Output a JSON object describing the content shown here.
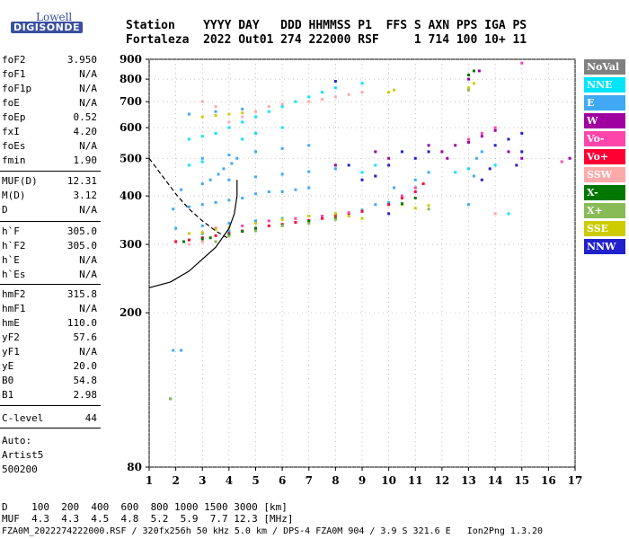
{
  "logo": {
    "lowell": "Lowell",
    "digisonde": "DIGISONDE"
  },
  "header": {
    "row1": "Station    YYYY DAY   DDD HHMMSS P1  FFS S AXN PPS IGA PS",
    "row2": "Fortaleza  2022 Out01 274 222000 RSF     1 714 100 10+ 11"
  },
  "params_block1": [
    {
      "label": "foF2",
      "value": "3.950"
    },
    {
      "label": "foF1",
      "value": "N/A"
    },
    {
      "label": "foF1p",
      "value": "N/A"
    },
    {
      "label": "foE",
      "value": "N/A"
    },
    {
      "label": "foEp",
      "value": "0.52"
    },
    {
      "label": "fxI",
      "value": "4.20"
    },
    {
      "label": "foEs",
      "value": "N/A"
    },
    {
      "label": "fmin",
      "value": "1.90"
    }
  ],
  "params_block2": [
    {
      "label": "MUF(D)",
      "value": "12.31"
    },
    {
      "label": "M(D)",
      "value": "3.12"
    },
    {
      "label": "D",
      "value": "N/A"
    }
  ],
  "params_block3": [
    {
      "label": "h`F",
      "value": "305.0"
    },
    {
      "label": "h`F2",
      "value": "305.0"
    },
    {
      "label": "h`E",
      "value": "N/A"
    },
    {
      "label": "h`Es",
      "value": "N/A"
    }
  ],
  "params_block4": [
    {
      "label": "hmF2",
      "value": "315.8"
    },
    {
      "label": "hmF1",
      "value": "N/A"
    },
    {
      "label": "hmE",
      "value": "110.0"
    },
    {
      "label": "yF2",
      "value": "57.6"
    },
    {
      "label": "yF1",
      "value": "N/A"
    },
    {
      "label": "yE",
      "value": "20.0"
    },
    {
      "label": "B0",
      "value": "54.8"
    },
    {
      "label": "B1",
      "value": "2.98"
    }
  ],
  "params_block5": [
    {
      "label": "C-level",
      "value": "44"
    }
  ],
  "auto": {
    "line1": "Auto:",
    "line2": "Artist5",
    "line3": "500200"
  },
  "muf_table": {
    "row1": "D    100  200  400  600  800 1000 1500 3000 [km]",
    "row2": "MUF  4.3  4.3  4.5  4.8  5.2  5.9  7.7 12.3 [MHz]"
  },
  "footer": "FZA0M_2022274222000.RSF / 320fx256h 50 kHz 5.0 km / DPS-4 FZA0M 904 / 3.9 S 321.6 E   Ion2Png 1.3.20",
  "legend": [
    {
      "label": "NoVal",
      "color": "#808080"
    },
    {
      "label": "NNE",
      "color": "#00e5ff"
    },
    {
      "label": "E",
      "color": "#3fa9f5"
    },
    {
      "label": "W",
      "color": "#a000a0"
    },
    {
      "label": "Vo-",
      "color": "#ff44aa"
    },
    {
      "label": "Vo+",
      "color": "#ff0033"
    },
    {
      "label": "SSW",
      "color": "#ffaaaa"
    },
    {
      "label": "X-",
      "color": "#007700"
    },
    {
      "label": "X+",
      "color": "#88bb55"
    },
    {
      "label": "SSE",
      "color": "#cccc00"
    },
    {
      "label": "NNW",
      "color": "#2020cc"
    }
  ],
  "chart_data": {
    "type": "scatter",
    "x_ticks": [
      1,
      2,
      3,
      4,
      5,
      6,
      7,
      8,
      9,
      10,
      11,
      12,
      13,
      14,
      15,
      16,
      17
    ],
    "y_ticks": [
      80,
      200,
      300,
      400,
      500,
      600,
      700,
      800,
      900
    ],
    "xlim": [
      1,
      17
    ],
    "ylim_log": [
      80,
      900
    ],
    "grid": true,
    "legend_placement": "right",
    "series": [
      {
        "name": "E",
        "color": "#3fa9f5",
        "points": [
          [
            1.9,
            370
          ],
          [
            2.5,
            375
          ],
          [
            3,
            380
          ],
          [
            3.5,
            385
          ],
          [
            4,
            390
          ],
          [
            4.5,
            395
          ],
          [
            5,
            405
          ],
          [
            5.5,
            410
          ],
          [
            6,
            410
          ],
          [
            6.5,
            415
          ],
          [
            7,
            420
          ],
          [
            2,
            330
          ],
          [
            3,
            335
          ],
          [
            4,
            340
          ],
          [
            5,
            345
          ],
          [
            6,
            350
          ],
          [
            7,
            355
          ],
          [
            8,
            360
          ],
          [
            9,
            368
          ],
          [
            10,
            385
          ],
          [
            10.5,
            395
          ],
          [
            2.2,
            415
          ],
          [
            3,
            430
          ],
          [
            4,
            440
          ],
          [
            5,
            448
          ],
          [
            6,
            455
          ],
          [
            7,
            462
          ],
          [
            8,
            470
          ],
          [
            3,
            500
          ],
          [
            4,
            510
          ],
          [
            5,
            520
          ],
          [
            6,
            530
          ],
          [
            7,
            540
          ],
          [
            2.5,
            650
          ],
          [
            3.5,
            660
          ],
          [
            4.5,
            670
          ],
          [
            3,
            320
          ],
          [
            4,
            325
          ],
          [
            1.9,
            160
          ],
          [
            2.2,
            160
          ],
          [
            13,
            380
          ],
          [
            13.2,
            450
          ],
          [
            13.3,
            500
          ],
          [
            13.5,
            520
          ],
          [
            10.2,
            420
          ],
          [
            11,
            440
          ],
          [
            11.5,
            460
          ],
          [
            9.5,
            380
          ],
          [
            3.3,
            440
          ],
          [
            3.6,
            455
          ],
          [
            3.8,
            470
          ],
          [
            4.1,
            485
          ],
          [
            4.3,
            500
          ]
        ]
      },
      {
        "name": "NNE",
        "color": "#00e5ff",
        "points": [
          [
            2.5,
            560
          ],
          [
            3,
            570
          ],
          [
            3.5,
            580
          ],
          [
            4,
            600
          ],
          [
            4.5,
            620
          ],
          [
            5,
            640
          ],
          [
            5.5,
            660
          ],
          [
            6,
            680
          ],
          [
            6.5,
            700
          ],
          [
            7,
            720
          ],
          [
            7.5,
            740
          ],
          [
            8,
            760
          ],
          [
            9,
            780
          ],
          [
            2.5,
            480
          ],
          [
            3,
            490
          ],
          [
            4.5,
            560
          ],
          [
            5,
            580
          ],
          [
            6,
            600
          ],
          [
            13,
            470
          ],
          [
            14,
            480
          ],
          [
            14.5,
            360
          ],
          [
            12.5,
            460
          ],
          [
            10.5,
            400
          ],
          [
            11,
            420
          ],
          [
            9,
            460
          ],
          [
            9.5,
            480
          ]
        ]
      },
      {
        "name": "Vo+",
        "color": "#ff0033",
        "points": [
          [
            2,
            305
          ],
          [
            2.5,
            308
          ],
          [
            3,
            312
          ],
          [
            3.5,
            316
          ],
          [
            4,
            320
          ],
          [
            4.5,
            325
          ],
          [
            5,
            330
          ],
          [
            5.5,
            335
          ],
          [
            6,
            338
          ],
          [
            6.5,
            342
          ],
          [
            7,
            346
          ],
          [
            7.5,
            350
          ],
          [
            8,
            356
          ],
          [
            8.5,
            360
          ],
          [
            9,
            365
          ],
          [
            10,
            380
          ],
          [
            10.5,
            395
          ],
          [
            11,
            410
          ],
          [
            11.3,
            430
          ]
        ]
      },
      {
        "name": "Vo-",
        "color": "#ff44aa",
        "points": [
          [
            2.5,
            320
          ],
          [
            3.5,
            330
          ],
          [
            4.5,
            335
          ],
          [
            5.5,
            345
          ],
          [
            6.5,
            350
          ],
          [
            7.5,
            355
          ],
          [
            8.5,
            362
          ],
          [
            10.5,
            400
          ],
          [
            11,
            420
          ],
          [
            13,
            560
          ],
          [
            13.5,
            580
          ],
          [
            14,
            600
          ],
          [
            15,
            880
          ],
          [
            16.5,
            490
          ]
        ]
      },
      {
        "name": "W",
        "color": "#a000a0",
        "points": [
          [
            12,
            520
          ],
          [
            12.5,
            540
          ],
          [
            13,
            550
          ],
          [
            13.5,
            570
          ],
          [
            14,
            590
          ],
          [
            14.5,
            520
          ],
          [
            15,
            500
          ],
          [
            13,
            800
          ],
          [
            13.4,
            840
          ],
          [
            9.5,
            520
          ],
          [
            10,
            500
          ],
          [
            8,
            480
          ],
          [
            16.8,
            500
          ],
          [
            11.5,
            540
          ],
          [
            12.2,
            500
          ]
        ]
      },
      {
        "name": "NNW",
        "color": "#2020cc",
        "points": [
          [
            10,
            480
          ],
          [
            10.5,
            520
          ],
          [
            11,
            500
          ],
          [
            9.5,
            450
          ],
          [
            9,
            440
          ],
          [
            13.5,
            440
          ],
          [
            14,
            540
          ],
          [
            14.5,
            560
          ],
          [
            15,
            580
          ],
          [
            15,
            520
          ],
          [
            14.8,
            480
          ],
          [
            13.8,
            470
          ],
          [
            10,
            360
          ],
          [
            8,
            790
          ],
          [
            8.5,
            480
          ],
          [
            11.5,
            520
          ]
        ]
      },
      {
        "name": "SSE",
        "color": "#cccc00",
        "points": [
          [
            2.5,
            320
          ],
          [
            3,
            322
          ],
          [
            3.5,
            328
          ],
          [
            4,
            332
          ],
          [
            5,
            340
          ],
          [
            6,
            348
          ],
          [
            7,
            355
          ],
          [
            8,
            360
          ],
          [
            8.5,
            355
          ],
          [
            9,
            350
          ],
          [
            10.5,
            380
          ],
          [
            11,
            372
          ],
          [
            11.5,
            378
          ],
          [
            3,
            640
          ],
          [
            3.5,
            645
          ],
          [
            4,
            650
          ],
          [
            4.5,
            655
          ],
          [
            13,
            760
          ],
          [
            13.2,
            780
          ],
          [
            10,
            740
          ],
          [
            10.2,
            750
          ]
        ]
      },
      {
        "name": "X-",
        "color": "#007700",
        "points": [
          [
            2.3,
            305
          ],
          [
            3,
            310
          ],
          [
            3.3,
            312
          ],
          [
            4,
            318
          ],
          [
            4.5,
            324
          ],
          [
            5,
            330
          ],
          [
            6,
            336
          ],
          [
            7,
            344
          ],
          [
            8,
            350
          ],
          [
            10.5,
            382
          ],
          [
            11,
            395
          ],
          [
            1.8,
            120
          ],
          [
            13,
            820
          ],
          [
            13.2,
            840
          ]
        ]
      },
      {
        "name": "X+",
        "color": "#88bb55",
        "points": [
          [
            3.5,
            305
          ],
          [
            4,
            315
          ],
          [
            5,
            325
          ],
          [
            6,
            335
          ],
          [
            7,
            340
          ],
          [
            8,
            348
          ],
          [
            11.5,
            370
          ],
          [
            13,
            750
          ],
          [
            1.8,
            120
          ]
        ]
      },
      {
        "name": "SSW",
        "color": "#ffaaaa",
        "points": [
          [
            2.5,
            300
          ],
          [
            3,
            305
          ],
          [
            4,
            620
          ],
          [
            4.5,
            640
          ],
          [
            5,
            660
          ],
          [
            3.5,
            680
          ],
          [
            3,
            700
          ],
          [
            5.5,
            680
          ],
          [
            6,
            690
          ],
          [
            7,
            700
          ],
          [
            7.5,
            710
          ],
          [
            8,
            720
          ],
          [
            8.5,
            730
          ],
          [
            9,
            740
          ],
          [
            14,
            360
          ]
        ]
      }
    ],
    "curves": [
      {
        "name": "profile",
        "color": "#000000",
        "points": [
          [
            1,
            232
          ],
          [
            1.8,
            240
          ],
          [
            2.5,
            256
          ],
          [
            3,
            275
          ],
          [
            3.5,
            295
          ],
          [
            4,
            330
          ],
          [
            4.2,
            360
          ],
          [
            4.3,
            400
          ],
          [
            4.3,
            440
          ]
        ]
      },
      {
        "name": "muf-dashed",
        "color": "#000000",
        "dashed": true,
        "points": [
          [
            1,
            500
          ],
          [
            1.5,
            450
          ],
          [
            2,
            405
          ],
          [
            2.5,
            370
          ],
          [
            3,
            345
          ],
          [
            3.5,
            325
          ],
          [
            4,
            310
          ]
        ]
      }
    ]
  }
}
